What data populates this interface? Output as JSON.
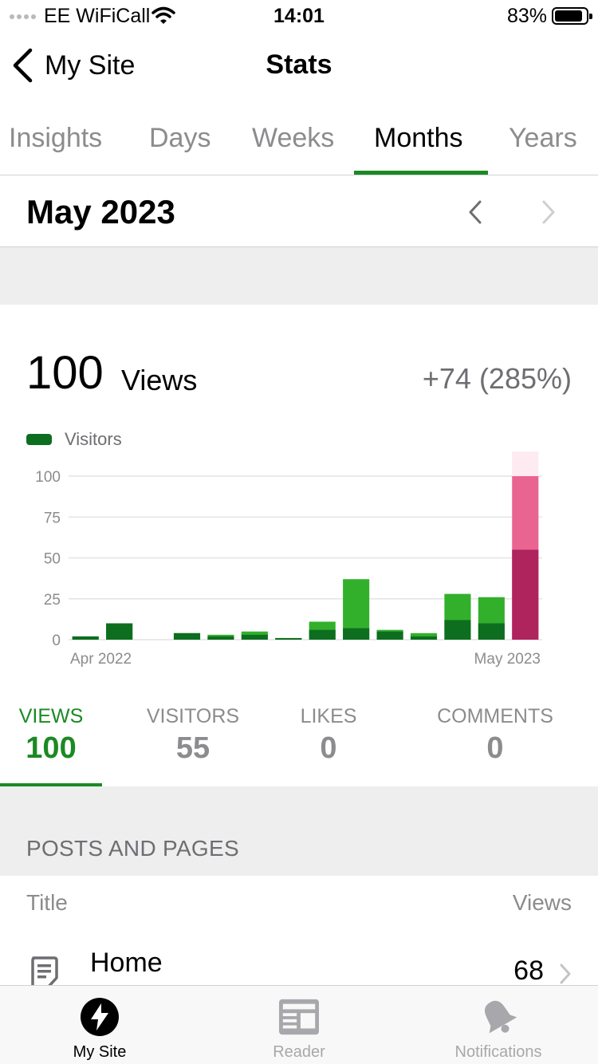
{
  "status_bar": {
    "carrier": "EE WiFiCall",
    "time": "14:01",
    "battery": "83%",
    "icons": [
      "signal-dots-icon",
      "wifi-icon",
      "battery-icon"
    ]
  },
  "nav": {
    "back_label": "My Site",
    "title": "Stats",
    "back_icon": "chevron-left-icon"
  },
  "period_tabs": [
    {
      "label": "Insights",
      "active": false
    },
    {
      "label": "Days",
      "active": false
    },
    {
      "label": "Weeks",
      "active": false
    },
    {
      "label": "Months",
      "active": true
    },
    {
      "label": "Years",
      "active": false
    }
  ],
  "date_nav": {
    "label": "May 2023",
    "prev_icon": "chevron-left-icon",
    "next_icon": "chevron-right-icon"
  },
  "summary": {
    "value": "100",
    "unit": "Views",
    "change": "+74 (285%)"
  },
  "chart_data": {
    "type": "bar",
    "title": "",
    "xlabel": "",
    "ylabel": "",
    "legend": [
      "Visitors"
    ],
    "legend_position": "top-left",
    "ylim": [
      0,
      115
    ],
    "yticks": [
      0,
      25,
      50,
      75,
      100
    ],
    "xtick_labels": [
      {
        "category_index": 0,
        "label": "Apr 2022"
      },
      {
        "category_index": 13,
        "label": "May 2023"
      }
    ],
    "grid": true,
    "categories": [
      "Apr 2022",
      "May 2022",
      "Jun 2022",
      "Jul 2022",
      "Aug 2022",
      "Sep 2022",
      "Oct 2022",
      "Nov 2022",
      "Dec 2022",
      "Jan 2023",
      "Feb 2023",
      "Mar 2023",
      "Apr 2023",
      "May 2023"
    ],
    "series": [
      {
        "name": "Visitors",
        "values": [
          2,
          10,
          0,
          4,
          2,
          3,
          1,
          6,
          7,
          5,
          2,
          12,
          10,
          55
        ]
      },
      {
        "name": "",
        "values": [
          2,
          10,
          0,
          4,
          3,
          5,
          1,
          11,
          37,
          6,
          4,
          28,
          26,
          100
        ]
      }
    ],
    "selected_index": 13,
    "colors": {
      "visitors": "#0d6e1f",
      "views": "#32b02b",
      "selected_visitors": "#b0245e",
      "selected_views": "#ea6492",
      "selected_highlight": "#fdebf1",
      "grid": "#e4e4e6",
      "axis": "#8c8c8f"
    }
  },
  "metrics": [
    {
      "label": "VIEWS",
      "value": "100",
      "active": true
    },
    {
      "label": "VISITORS",
      "value": "55",
      "active": false
    },
    {
      "label": "LIKES",
      "value": "0",
      "active": false
    },
    {
      "label": "COMMENTS",
      "value": "0",
      "active": false
    }
  ],
  "posts_section": {
    "title": "POSTS AND PAGES",
    "col_title": "Title",
    "col_views": "Views",
    "rows": [
      {
        "title": "Home",
        "views": "68",
        "icon": "page-icon"
      }
    ]
  },
  "tabbar": [
    {
      "label": "My Site",
      "icon": "wordpress-logo-icon",
      "active": true
    },
    {
      "label": "Reader",
      "icon": "reader-icon",
      "active": false
    },
    {
      "label": "Notifications",
      "icon": "bell-icon",
      "active": false
    }
  ],
  "accent_color": "#1b8a23"
}
